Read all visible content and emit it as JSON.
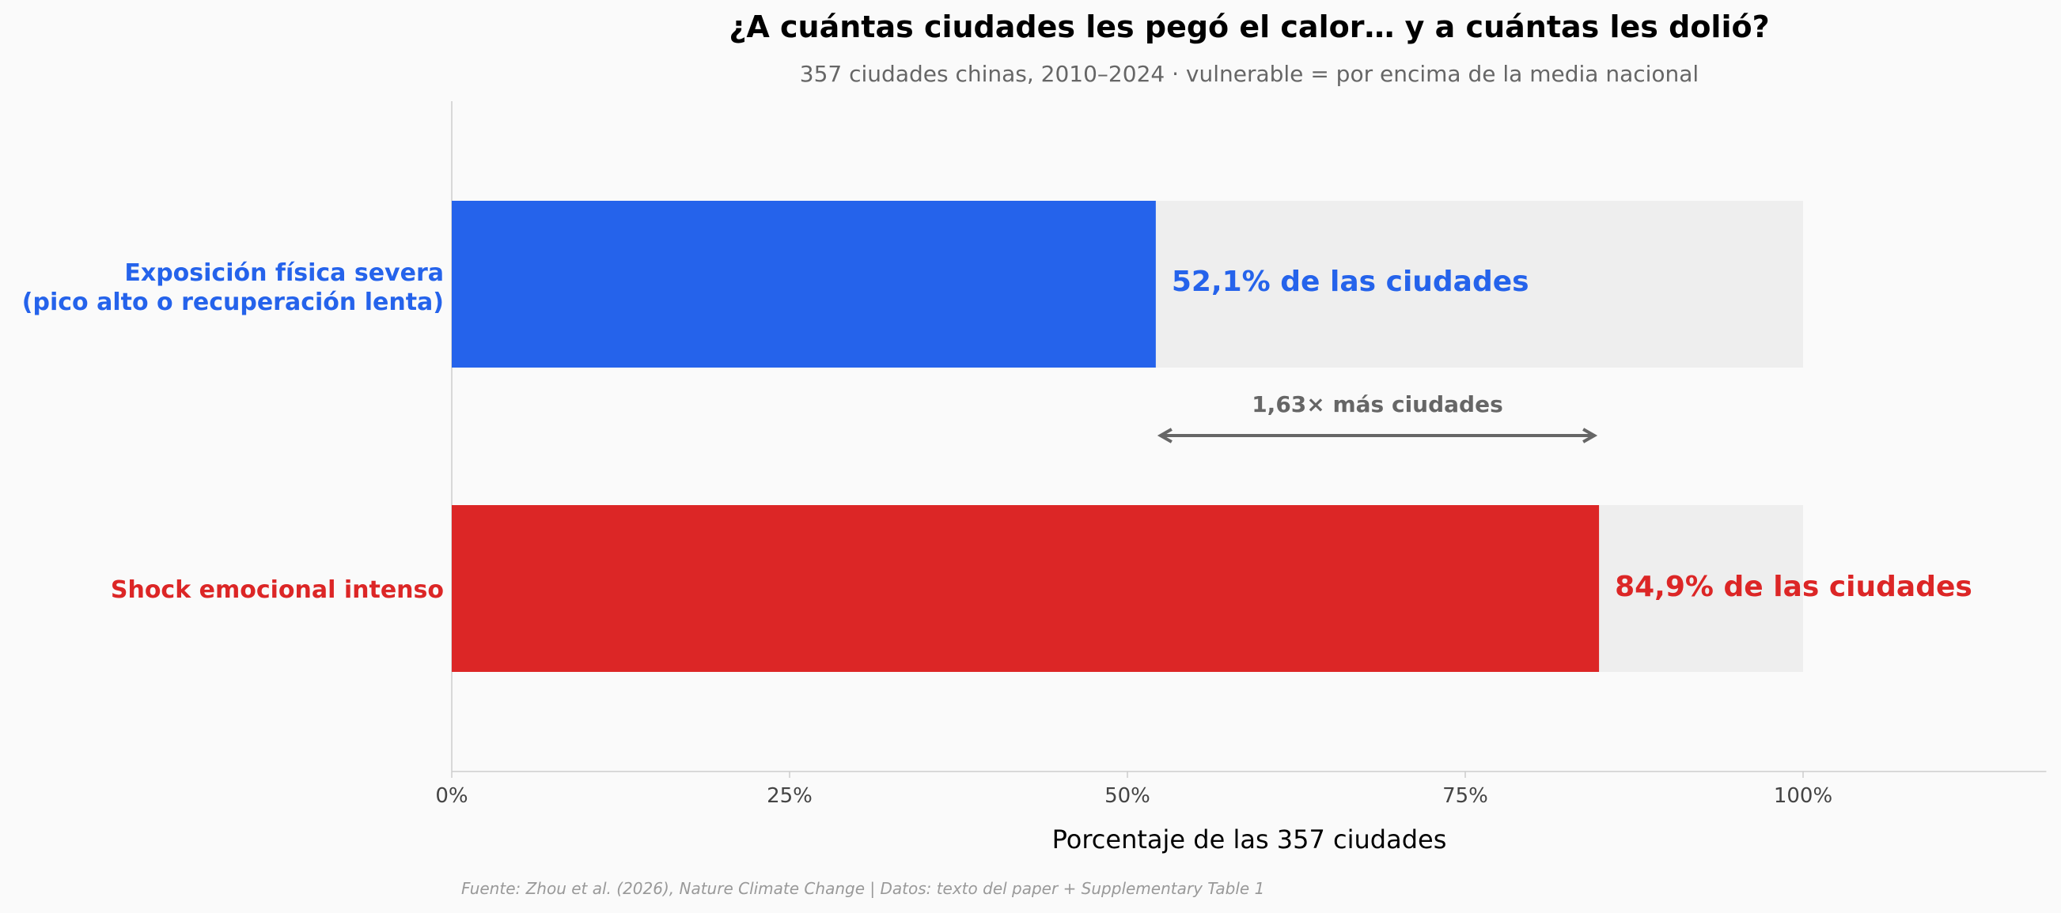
{
  "chart_data": {
    "type": "bar",
    "orientation": "horizontal",
    "title": "¿A cuántas ciudades les pegó el calor… y a cuántas les dolió?",
    "subtitle": "357 ciudades chinas, 2010–2024 · vulnerable = por encima de la media nacional",
    "categories": [
      [
        "Exposición física severa",
        "(pico alto o recuperación lenta)"
      ],
      [
        "Shock emocional intenso"
      ]
    ],
    "values": [
      52.1,
      84.9
    ],
    "value_labels": [
      "52,1% de las ciudades",
      "84,9% de las ciudades"
    ],
    "background_max": 100,
    "colors": [
      "#2563eb",
      "#dc2626"
    ],
    "background_color": "#eeeeee",
    "xlim": [
      0,
      118
    ],
    "xticks": [
      0,
      25,
      50,
      75,
      100
    ],
    "xtick_labels": [
      "0%",
      "25%",
      "50%",
      "75%",
      "100%"
    ],
    "xlabel": "Porcentaje de las 357 ciudades",
    "annotation": {
      "text": "1,63× más ciudades",
      "from": 52.1,
      "to": 84.9
    },
    "grid": false,
    "source": "Fuente: Zhou et al. (2026), Nature Climate Change | Datos: texto del paper + Supplementary Table 1"
  }
}
